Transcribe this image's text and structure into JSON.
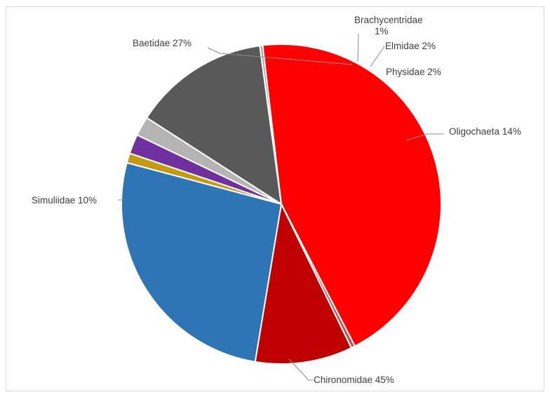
{
  "chart_data": {
    "type": "pie",
    "title": "",
    "slices": [
      {
        "name": "Brachycentridae",
        "value": 1,
        "label": "Brachycentridae 1%",
        "color": "#c59a0e"
      },
      {
        "name": "Elmidae",
        "value": 2,
        "label": "Elmidae 2%",
        "color": "#7030a0"
      },
      {
        "name": "Physidae",
        "value": 2,
        "label": "Physidae 2%",
        "color": "#b4b4b4"
      },
      {
        "name": "Oligochaeta",
        "value": 14,
        "label": "Oligochaeta 14%",
        "color": "#595959"
      },
      {
        "name": "",
        "value": 0.3,
        "label": "",
        "color": "#a5a5a5"
      },
      {
        "name": "Chironomidae",
        "value": 45,
        "label": "Chironomidae 45%",
        "color": "#ff0000"
      },
      {
        "name": "",
        "value": 0.4,
        "label": "",
        "color": "#c0504d"
      },
      {
        "name": "Simuliidae",
        "value": 10,
        "label": "Simuliidae 10%",
        "color": "#c00000"
      },
      {
        "name": "Baetidae",
        "value": 27,
        "label": "Baetidae 27%",
        "color": "#2e75b6"
      }
    ],
    "legend": "none",
    "slice_border_color": "#ffffff"
  }
}
